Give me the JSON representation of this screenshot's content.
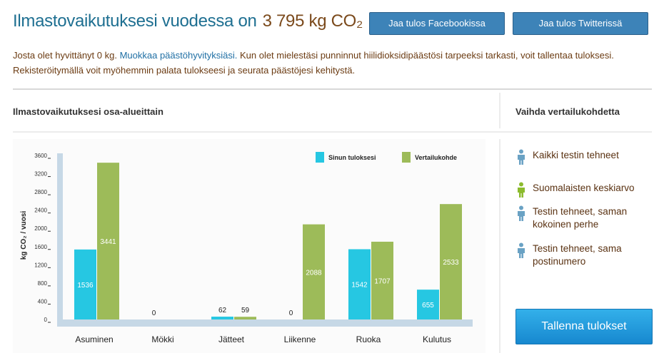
{
  "header": {
    "title": "Ilmastovaikutuksesi vuodessa on",
    "result": "3 795 kg CO₂",
    "buttons": [
      "Jaa tulos Facebookissa",
      "Jaa tulos Twitterissä"
    ]
  },
  "intro": {
    "text_before": "Josta olet hyvittänyt 0 kg.",
    "link": "Muokkaa päästöhyvityksiäsi.",
    "text_after": "Kun olet mielestäsi punninnut hiilidioksidipäästösi tarpeeksi tarkasti, voit tallentaa tuloksesi. Rekisteröitymällä voit myöhemmin palata tulokseesi ja seurata päästöjesi kehitystä."
  },
  "sections": {
    "left_title": "Ilmastovaikutuksesi osa-alueittain",
    "right_title": "Vaihda vertailukohdetta"
  },
  "comparisons": {
    "selected": 1,
    "items": [
      "Kaikki testin tehneet",
      "Suomalaisten keskiarvo",
      "Testin tehneet, saman kokoinen perhe",
      "Testin tehneet, sama postinumero"
    ]
  },
  "save_button": "Tallenna tulokset",
  "chart_data": {
    "type": "bar",
    "y_label": "kg CO₂ / vuosi",
    "categories": [
      "Asuminen",
      "Mökki",
      "Jätteet",
      "Liikenne",
      "Ruoka",
      "Kulutus"
    ],
    "series": [
      {
        "name": "Sinun tuloksesi",
        "color": "#26c7e2",
        "values": [
          1536,
          0,
          62,
          0,
          1542,
          655
        ]
      },
      {
        "name": "Vertailukohde",
        "color": "#9dbb59",
        "values": [
          3441,
          null,
          59,
          2088,
          1707,
          2533
        ]
      }
    ],
    "ylim": [
      0,
      3600
    ],
    "yticks": [
      0,
      400,
      800,
      1200,
      1600,
      2000,
      2400,
      2800,
      3200,
      3600
    ]
  }
}
